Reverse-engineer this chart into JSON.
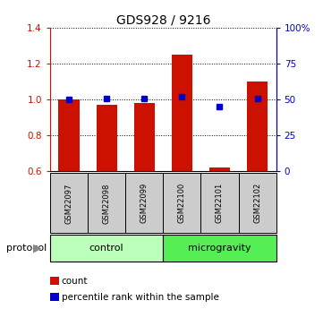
{
  "title": "GDS928 / 9216",
  "samples": [
    "GSM22097",
    "GSM22098",
    "GSM22099",
    "GSM22100",
    "GSM22101",
    "GSM22102"
  ],
  "count_values": [
    1.0,
    0.97,
    0.98,
    1.25,
    0.62,
    1.1
  ],
  "percentile_values": [
    50,
    51,
    51,
    52,
    45,
    51
  ],
  "ylim_left": [
    0.6,
    1.4
  ],
  "ylim_right": [
    0,
    100
  ],
  "yticks_left": [
    0.6,
    0.8,
    1.0,
    1.2,
    1.4
  ],
  "yticks_right": [
    0,
    25,
    50,
    75,
    100
  ],
  "ytick_labels_right": [
    "0",
    "25",
    "50",
    "75",
    "100%"
  ],
  "bar_color": "#cc1100",
  "marker_color": "#0000cc",
  "protocol_groups": [
    {
      "label": "control",
      "start": 0,
      "end": 2,
      "color": "#bbffbb"
    },
    {
      "label": "microgravity",
      "start": 3,
      "end": 5,
      "color": "#55ee55"
    }
  ],
  "legend_items": [
    {
      "label": "count",
      "color": "#cc1100"
    },
    {
      "label": "percentile rank within the sample",
      "color": "#0000cc"
    }
  ],
  "sample_box_color": "#cccccc",
  "protocol_label": "protocol"
}
